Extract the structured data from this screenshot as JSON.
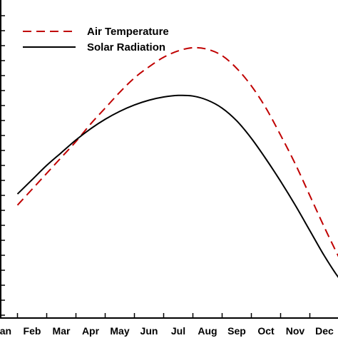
{
  "chart_data": {
    "type": "line",
    "title": "",
    "xlabel": "",
    "ylabel": "",
    "categories": [
      "Jan",
      "Feb",
      "Mar",
      "Apr",
      "May",
      "Jun",
      "Jul",
      "Aug",
      "Sep",
      "Oct",
      "Nov",
      "Dec"
    ],
    "x_range": [
      0.5,
      11.9
    ],
    "ylim": [
      0,
      1
    ],
    "grid": false,
    "legend_position": "top-left",
    "series": [
      {
        "name": "Air Temperature",
        "style": "dashed",
        "color": "#c00000",
        "x": [
          0.5,
          1.0,
          1.5,
          2.0,
          2.5,
          3.0,
          3.5,
          4.0,
          4.5,
          5.0,
          5.5,
          6.0,
          6.5,
          7.0,
          7.5,
          8.0,
          8.5,
          9.0,
          9.5,
          10.0,
          10.5,
          11.0,
          11.5,
          11.9
        ],
        "values": [
          0.355,
          0.405,
          0.455,
          0.505,
          0.555,
          0.61,
          0.66,
          0.71,
          0.755,
          0.79,
          0.82,
          0.84,
          0.85,
          0.845,
          0.825,
          0.785,
          0.73,
          0.66,
          0.575,
          0.485,
          0.385,
          0.285,
          0.19,
          0.12
        ]
      },
      {
        "name": "Solar Radiation",
        "style": "solid",
        "color": "#000000",
        "x": [
          0.5,
          1.0,
          1.5,
          2.0,
          2.5,
          3.0,
          3.5,
          4.0,
          4.5,
          5.0,
          5.5,
          6.0,
          6.5,
          7.0,
          7.5,
          8.0,
          8.5,
          9.0,
          9.5,
          10.0,
          10.5,
          11.0,
          11.5,
          11.9
        ],
        "values": [
          0.39,
          0.435,
          0.48,
          0.52,
          0.56,
          0.595,
          0.625,
          0.65,
          0.67,
          0.685,
          0.695,
          0.7,
          0.698,
          0.685,
          0.66,
          0.62,
          0.565,
          0.5,
          0.43,
          0.355,
          0.275,
          0.195,
          0.125,
          0.085
        ]
      }
    ]
  },
  "colors": {
    "axis": "#000000",
    "background": "#ffffff"
  }
}
